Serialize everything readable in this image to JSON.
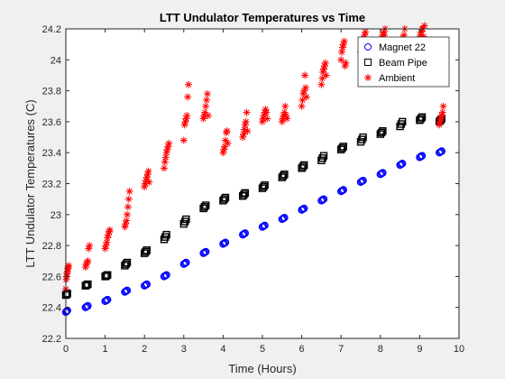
{
  "chart_data": {
    "type": "scatter",
    "title": "LTT Undulator Temperatures vs Time",
    "xlabel": "Time (Hours)",
    "ylabel": "LTT Undulator Temperatures (C)",
    "xlim": [
      0,
      10
    ],
    "ylim": [
      22.2,
      24.2
    ],
    "xticks": [
      "0",
      "1",
      "2",
      "3",
      "4",
      "5",
      "6",
      "7",
      "8",
      "9",
      "10"
    ],
    "yticks": [
      "22.2",
      "22.4",
      "22.6",
      "22.8",
      "23",
      "23.2",
      "23.4",
      "23.6",
      "23.8",
      "24",
      "24.2"
    ],
    "grid": false,
    "legend_position": "top-right",
    "series": [
      {
        "name": "Magnet 22",
        "marker": "circle",
        "color": "#0000ff",
        "x": [
          0.0,
          0.02,
          0.04,
          0.5,
          0.53,
          0.56,
          1.0,
          1.03,
          1.06,
          1.5,
          1.53,
          1.56,
          2.0,
          2.03,
          2.06,
          2.5,
          2.53,
          2.56,
          3.0,
          3.03,
          3.06,
          3.5,
          3.53,
          3.56,
          4.0,
          4.03,
          4.06,
          4.5,
          4.53,
          4.56,
          5.0,
          5.03,
          5.06,
          5.5,
          5.53,
          5.56,
          6.0,
          6.03,
          6.06,
          6.5,
          6.53,
          6.56,
          7.0,
          7.03,
          7.06,
          7.5,
          7.53,
          7.56,
          8.0,
          8.03,
          8.06,
          8.5,
          8.53,
          8.56,
          9.0,
          9.03,
          9.06,
          9.5,
          9.53,
          9.56
        ],
        "y": [
          22.37,
          22.375,
          22.38,
          22.4,
          22.405,
          22.41,
          22.44,
          22.445,
          22.45,
          22.5,
          22.505,
          22.51,
          22.54,
          22.545,
          22.55,
          22.6,
          22.605,
          22.61,
          22.68,
          22.685,
          22.69,
          22.75,
          22.755,
          22.76,
          22.81,
          22.815,
          22.82,
          22.87,
          22.875,
          22.88,
          22.92,
          22.925,
          22.93,
          22.97,
          22.975,
          22.98,
          23.03,
          23.035,
          23.04,
          23.09,
          23.095,
          23.1,
          23.15,
          23.155,
          23.16,
          23.21,
          23.215,
          23.22,
          23.26,
          23.265,
          23.27,
          23.32,
          23.325,
          23.33,
          23.37,
          23.375,
          23.38,
          23.4,
          23.405,
          23.41
        ]
      },
      {
        "name": "Beam Pipe",
        "marker": "square",
        "color": "#000000",
        "x": [
          0.0,
          0.02,
          0.04,
          0.5,
          0.53,
          0.56,
          1.0,
          1.03,
          1.06,
          1.5,
          1.53,
          1.56,
          2.0,
          2.03,
          2.06,
          2.5,
          2.53,
          2.56,
          3.0,
          3.03,
          3.06,
          3.5,
          3.53,
          3.56,
          4.0,
          4.03,
          4.06,
          4.5,
          4.53,
          4.56,
          5.0,
          5.03,
          5.06,
          5.5,
          5.53,
          5.56,
          6.0,
          6.03,
          6.06,
          6.5,
          6.53,
          6.56,
          7.0,
          7.03,
          7.06,
          7.5,
          7.53,
          7.56,
          8.0,
          8.03,
          8.06,
          8.5,
          8.53,
          8.56,
          9.0,
          9.03,
          9.06,
          9.5,
          9.53,
          9.56
        ],
        "y": [
          22.48,
          22.485,
          22.49,
          22.54,
          22.545,
          22.55,
          22.6,
          22.605,
          22.61,
          22.67,
          22.68,
          22.69,
          22.75,
          22.76,
          22.77,
          22.84,
          22.855,
          22.87,
          22.94,
          22.955,
          22.97,
          23.04,
          23.05,
          23.06,
          23.09,
          23.1,
          23.11,
          23.12,
          23.13,
          23.14,
          23.17,
          23.18,
          23.19,
          23.24,
          23.25,
          23.26,
          23.3,
          23.31,
          23.32,
          23.35,
          23.365,
          23.38,
          23.42,
          23.43,
          23.44,
          23.47,
          23.485,
          23.5,
          23.52,
          23.53,
          23.54,
          23.57,
          23.585,
          23.6,
          23.61,
          23.62,
          23.63,
          23.6,
          23.61,
          23.62
        ]
      },
      {
        "name": "Ambient",
        "marker": "asterisk",
        "color": "#ff0000",
        "x": [
          0.0,
          0.01,
          0.02,
          0.03,
          0.04,
          0.05,
          0.06,
          0.07,
          0.5,
          0.52,
          0.54,
          0.56,
          0.58,
          0.6,
          1.0,
          1.02,
          1.04,
          1.06,
          1.08,
          1.1,
          1.12,
          1.5,
          1.52,
          1.54,
          1.56,
          1.58,
          1.6,
          1.62,
          2.0,
          2.02,
          2.04,
          2.06,
          2.08,
          2.1,
          2.12,
          2.5,
          2.52,
          2.54,
          2.56,
          2.58,
          2.6,
          2.62,
          3.0,
          3.02,
          3.04,
          3.06,
          3.08,
          3.1,
          3.12,
          3.5,
          3.52,
          3.54,
          3.56,
          3.58,
          3.6,
          3.62,
          4.0,
          4.02,
          4.04,
          4.06,
          4.08,
          4.1,
          4.12,
          4.5,
          4.52,
          4.54,
          4.56,
          4.58,
          4.6,
          4.62,
          5.0,
          5.02,
          5.04,
          5.06,
          5.08,
          5.1,
          5.12,
          5.5,
          5.52,
          5.54,
          5.56,
          5.58,
          5.6,
          5.62,
          6.0,
          6.02,
          6.04,
          6.06,
          6.08,
          6.1,
          6.12,
          6.5,
          6.52,
          6.54,
          6.56,
          6.58,
          6.6,
          6.62,
          7.0,
          7.02,
          7.04,
          7.06,
          7.08,
          7.1,
          7.12,
          7.5,
          7.52,
          7.54,
          7.56,
          7.58,
          7.6,
          7.62,
          8.0,
          8.02,
          8.04,
          8.06,
          8.08,
          8.1,
          8.12,
          8.5,
          8.52,
          8.54,
          8.56,
          8.58,
          8.6,
          8.62,
          9.0,
          9.02,
          9.04,
          9.06,
          9.08,
          9.1,
          9.12,
          9.5,
          9.52,
          9.54,
          9.56,
          9.58,
          9.6
        ],
        "y": [
          22.52,
          22.58,
          22.6,
          22.62,
          22.63,
          22.65,
          22.66,
          22.67,
          22.66,
          22.68,
          22.69,
          22.7,
          22.78,
          22.8,
          22.78,
          22.8,
          22.82,
          22.85,
          22.87,
          22.89,
          22.9,
          22.92,
          22.94,
          22.96,
          23.0,
          23.05,
          23.1,
          23.15,
          23.18,
          23.2,
          23.22,
          23.24,
          23.26,
          23.28,
          23.21,
          23.3,
          23.34,
          23.37,
          23.4,
          23.42,
          23.44,
          23.46,
          23.48,
          23.58,
          23.6,
          23.62,
          23.64,
          23.76,
          23.84,
          23.62,
          23.64,
          23.66,
          23.7,
          23.74,
          23.78,
          23.64,
          23.4,
          23.42,
          23.44,
          23.48,
          23.53,
          23.54,
          23.46,
          23.5,
          23.52,
          23.55,
          23.58,
          23.6,
          23.66,
          23.54,
          23.6,
          23.62,
          23.64,
          23.66,
          23.68,
          23.66,
          23.62,
          23.6,
          23.62,
          23.64,
          23.66,
          23.7,
          23.64,
          23.62,
          23.7,
          23.74,
          23.78,
          23.8,
          23.9,
          23.82,
          23.76,
          23.84,
          23.88,
          23.92,
          23.94,
          23.96,
          23.98,
          23.9,
          24.0,
          24.05,
          24.08,
          24.1,
          24.12,
          23.96,
          23.98,
          24.05,
          24.08,
          24.1,
          24.12,
          24.14,
          24.16,
          24.18,
          24.1,
          24.12,
          24.14,
          24.16,
          24.18,
          24.16,
          24.2,
          24.0,
          24.08,
          24.1,
          24.12,
          24.14,
          24.16,
          24.2,
          24.14,
          24.16,
          24.18,
          24.2,
          24.2,
          24.15,
          24.22,
          23.58,
          23.6,
          23.62,
          23.64,
          23.66,
          23.7
        ]
      }
    ]
  },
  "colors": {
    "figure_background": "#f0f0f0",
    "axes_background": "#ffffff",
    "axis": "#262626"
  }
}
